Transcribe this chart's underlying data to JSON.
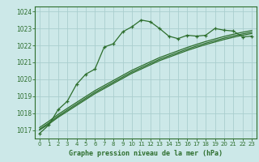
{
  "xlabel": "Graphe pression niveau de la mer (hPa)",
  "bg_color": "#cce8e8",
  "grid_color": "#aacece",
  "line_color": "#2d6e2d",
  "ylim": [
    1016.5,
    1024.3
  ],
  "xlim": [
    -0.5,
    23.5
  ],
  "yticks": [
    1017,
    1018,
    1019,
    1020,
    1021,
    1022,
    1023,
    1024
  ],
  "xticks": [
    0,
    1,
    2,
    3,
    4,
    5,
    6,
    7,
    8,
    9,
    10,
    11,
    12,
    13,
    14,
    15,
    16,
    17,
    18,
    19,
    20,
    21,
    22,
    23
  ],
  "main_series": [
    1016.8,
    1017.3,
    1018.2,
    1018.7,
    1019.7,
    1020.3,
    1020.6,
    1021.9,
    1022.1,
    1022.8,
    1023.1,
    1023.5,
    1023.4,
    1023.0,
    1022.55,
    1022.4,
    1022.6,
    1022.55,
    1022.6,
    1023.0,
    1022.9,
    1022.85,
    1022.5,
    1022.55
  ],
  "smooth1": [
    1017.0,
    1017.35,
    1017.75,
    1018.1,
    1018.45,
    1018.8,
    1019.15,
    1019.45,
    1019.75,
    1020.05,
    1020.35,
    1020.6,
    1020.85,
    1021.1,
    1021.3,
    1021.5,
    1021.7,
    1021.88,
    1022.05,
    1022.2,
    1022.35,
    1022.48,
    1022.6,
    1022.7
  ],
  "smooth2": [
    1017.05,
    1017.42,
    1017.82,
    1018.18,
    1018.53,
    1018.88,
    1019.23,
    1019.53,
    1019.83,
    1020.13,
    1020.43,
    1020.68,
    1020.93,
    1021.18,
    1021.38,
    1021.58,
    1021.78,
    1021.96,
    1022.13,
    1022.28,
    1022.43,
    1022.56,
    1022.68,
    1022.78
  ],
  "smooth3": [
    1017.15,
    1017.52,
    1017.92,
    1018.28,
    1018.63,
    1018.98,
    1019.33,
    1019.63,
    1019.93,
    1020.23,
    1020.53,
    1020.78,
    1021.03,
    1021.28,
    1021.48,
    1021.68,
    1021.88,
    1022.06,
    1022.23,
    1022.38,
    1022.53,
    1022.66,
    1022.78,
    1022.88
  ]
}
